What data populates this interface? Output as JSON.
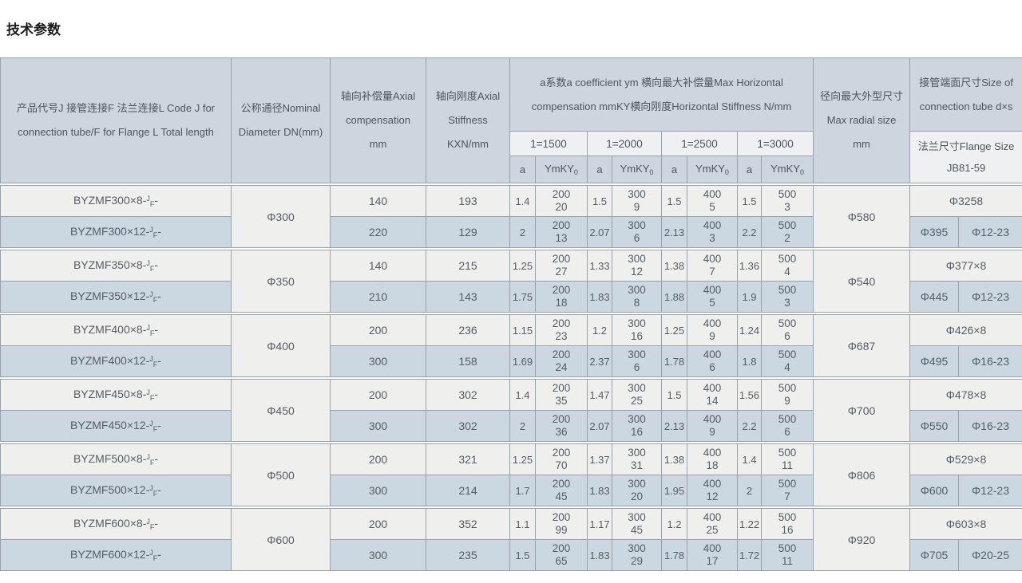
{
  "page_title": "技术参数",
  "table": {
    "headers": {
      "product": "产品代号J 接管连接F 法兰连接L Code J for connection tube/F for Flange L Total length",
      "dn": "公称通径Nominal Diameter DN(mm)",
      "axial_comp": "轴向补偿量Axial compensation mm",
      "axial_stiff": "轴向刚度Axial Stiffness KXN/mm",
      "group": "a系数a coefficient ym 横向最大补偿量Max Horizontal compensation mmKY横向刚度Horizontal Stiffness N/mm",
      "lengths": [
        "1=1500",
        "1=2000",
        "1=2500",
        "1=3000"
      ],
      "a_label": "a",
      "ym_label": "YmKY",
      "ym_sub": "0",
      "radial": "径向最大外型尺寸 Max radial size mm",
      "tube_size": "接管端面尺寸Size of connection tube d×s",
      "flange": "法兰尺寸Flange Size JB81-59"
    },
    "groups": [
      {
        "dn": "Φ300",
        "radial": "Φ580",
        "rows": [
          {
            "code_base": "BYZMF300×8-",
            "code_sup": "J",
            "code_sub": "F",
            "code_tail": "-",
            "axial_comp": "140",
            "stiffness": "193",
            "pairs": [
              [
                "1.4",
                "200",
                "20"
              ],
              [
                "1.5",
                "300",
                "9"
              ],
              [
                "1.5",
                "400",
                "5"
              ],
              [
                "1.5",
                "500",
                "3"
              ]
            ],
            "tube": "Φ3258"
          },
          {
            "code_base": "BYZMF300×12-",
            "code_sup": "J",
            "code_sub": "F",
            "code_tail": "-",
            "axial_comp": "220",
            "stiffness": "129",
            "pairs": [
              [
                "2",
                "200",
                "13"
              ],
              [
                "2.07",
                "300",
                "6"
              ],
              [
                "2.13",
                "400",
                "3"
              ],
              [
                "2.2",
                "500",
                "2"
              ]
            ],
            "tube_a": "Φ395",
            "tube_b": "Φ12-23"
          }
        ]
      },
      {
        "dn": "Φ350",
        "radial": "Φ540",
        "rows": [
          {
            "code_base": "BYZMF350×8-",
            "code_sup": "J",
            "code_sub": "F",
            "code_tail": "-",
            "axial_comp": "140",
            "stiffness": "215",
            "pairs": [
              [
                "1.25",
                "200",
                "27"
              ],
              [
                "1.33",
                "300",
                "12"
              ],
              [
                "1.38",
                "400",
                "7"
              ],
              [
                "1.36",
                "500",
                "4"
              ]
            ],
            "tube": "Φ377×8"
          },
          {
            "code_base": "BYZMF350×12-",
            "code_sup": "J",
            "code_sub": "F",
            "code_tail": "-",
            "axial_comp": "210",
            "stiffness": "143",
            "pairs": [
              [
                "1.75",
                "200",
                "18"
              ],
              [
                "1.83",
                "300",
                "8"
              ],
              [
                "1.88",
                "400",
                "5"
              ],
              [
                "1.9",
                "500",
                "3"
              ]
            ],
            "tube_a": "Φ445",
            "tube_b": "Φ12-23"
          }
        ]
      },
      {
        "dn": "Φ400",
        "radial": "Φ687",
        "rows": [
          {
            "code_base": "BYZMF400×8-",
            "code_sup": "J",
            "code_sub": "F",
            "code_tail": "-",
            "axial_comp": "200",
            "stiffness": "236",
            "pairs": [
              [
                "1.15",
                "200",
                "23"
              ],
              [
                "1.2",
                "300",
                "16"
              ],
              [
                "1.25",
                "400",
                "9"
              ],
              [
                "1.24",
                "500",
                "6"
              ]
            ],
            "tube": "Φ426×8"
          },
          {
            "code_base": "BYZMF400×12-",
            "code_sup": "J",
            "code_sub": "F",
            "code_tail": "-",
            "axial_comp": "300",
            "stiffness": "158",
            "pairs": [
              [
                "1.69",
                "200",
                "24"
              ],
              [
                "2.37",
                "300",
                "6"
              ],
              [
                "1.78",
                "400",
                "6"
              ],
              [
                "1.8",
                "500",
                "4"
              ]
            ],
            "tube_a": "Φ495",
            "tube_b": "Φ16-23"
          }
        ]
      },
      {
        "dn": "Φ450",
        "radial": "Φ700",
        "rows": [
          {
            "code_base": "BYZMF450×8-",
            "code_sup": "J",
            "code_sub": "F",
            "code_tail": "-",
            "axial_comp": "200",
            "stiffness": "302",
            "pairs": [
              [
                "1.4",
                "200",
                "35"
              ],
              [
                "1.47",
                "300",
                "25"
              ],
              [
                "1.5",
                "400",
                "14"
              ],
              [
                "1.56",
                "500",
                "9"
              ]
            ],
            "tube": "Φ478×8"
          },
          {
            "code_base": "BYZMF450×12-",
            "code_sup": "J",
            "code_sub": "F",
            "code_tail": "-",
            "axial_comp": "300",
            "stiffness": "302",
            "pairs": [
              [
                "2",
                "200",
                "36"
              ],
              [
                "2.07",
                "300",
                "16"
              ],
              [
                "2.13",
                "400",
                "9"
              ],
              [
                "2.2",
                "500",
                "6"
              ]
            ],
            "tube_a": "Φ550",
            "tube_b": "Φ16-23"
          }
        ]
      },
      {
        "dn": "Φ500",
        "radial": "Φ806",
        "rows": [
          {
            "code_base": "BYZMF500×8-",
            "code_sup": "J",
            "code_sub": "F",
            "code_tail": "-",
            "axial_comp": "200",
            "stiffness": "321",
            "pairs": [
              [
                "1.25",
                "200",
                "70"
              ],
              [
                "1.37",
                "300",
                "31"
              ],
              [
                "1.38",
                "400",
                "18"
              ],
              [
                "1.4",
                "500",
                "11"
              ]
            ],
            "tube": "Φ529×8"
          },
          {
            "code_base": "BYZMF500×12-",
            "code_sup": "J",
            "code_sub": "F",
            "code_tail": "-",
            "axial_comp": "300",
            "stiffness": "214",
            "pairs": [
              [
                "1.7",
                "200",
                "45"
              ],
              [
                "1.83",
                "300",
                "20"
              ],
              [
                "1.95",
                "400",
                "12"
              ],
              [
                "2",
                "500",
                "7"
              ]
            ],
            "tube_a": "Φ600",
            "tube_b": "Φ12-23"
          }
        ]
      },
      {
        "dn": "Φ600",
        "radial": "Φ920",
        "rows": [
          {
            "code_base": "BYZMF600×8-",
            "code_sup": "J",
            "code_sub": "F",
            "code_tail": "-",
            "axial_comp": "200",
            "stiffness": "352",
            "pairs": [
              [
                "1.1",
                "200",
                "99"
              ],
              [
                "1.17",
                "300",
                "45"
              ],
              [
                "1.2",
                "400",
                "25"
              ],
              [
                "1.22",
                "500",
                "16"
              ]
            ],
            "tube": "Φ603×8"
          },
          {
            "code_base": "BYZMF600×12-",
            "code_sup": "J",
            "code_sub": "F",
            "code_tail": "-",
            "axial_comp": "300",
            "stiffness": "235",
            "pairs": [
              [
                "1.5",
                "200",
                "65"
              ],
              [
                "1.83",
                "300",
                "29"
              ],
              [
                "1.78",
                "400",
                "17"
              ],
              [
                "1.72",
                "500",
                "11"
              ]
            ],
            "tube_a": "Φ705",
            "tube_b": "Φ20-25"
          }
        ]
      }
    ]
  }
}
